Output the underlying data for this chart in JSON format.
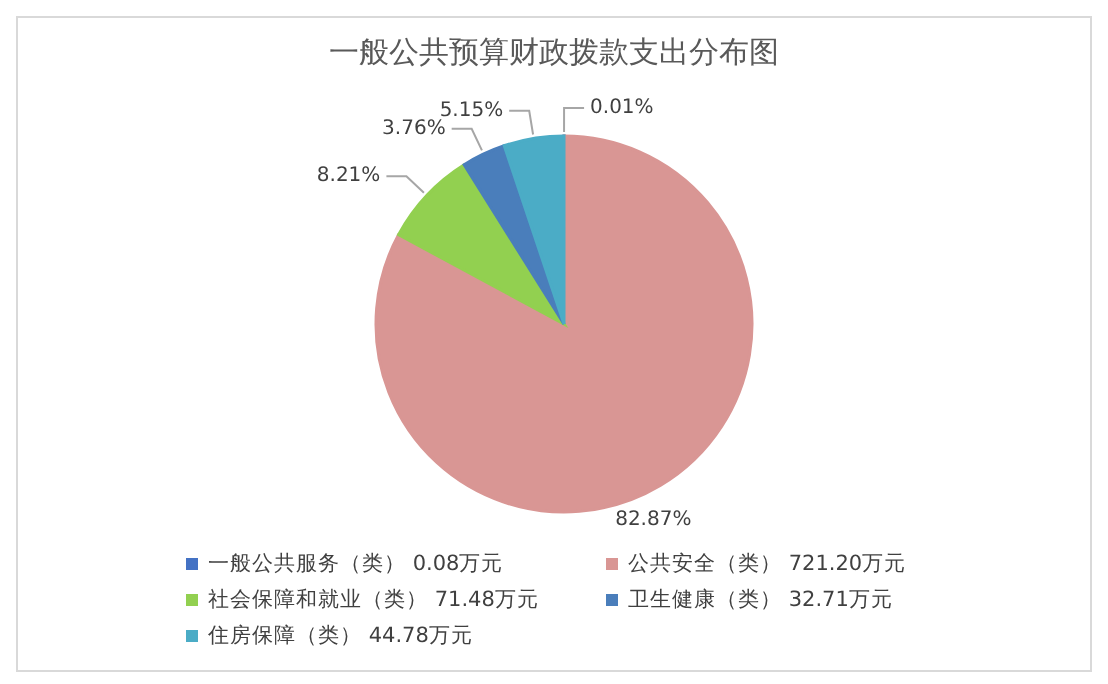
{
  "chart_data": {
    "type": "pie",
    "title": "一般公共预算财政拨款支出分布图",
    "categories": [
      "一般公共服务（类） 0.08万元",
      "公共安全（类） 721.20万元",
      "社会保障和就业（类） 71.48万元",
      "卫生健康（类） 32.71万元",
      "住房保障（类） 44.78万元"
    ],
    "values": [
      0.01,
      82.87,
      8.21,
      3.76,
      5.15
    ],
    "value_labels": [
      "0.01%",
      "82.87%",
      "8.21%",
      "3.76%",
      "5.15%"
    ],
    "colors": [
      "#4472c4",
      "#d99694",
      "#92d050",
      "#4a7ebb",
      "#4bacc6"
    ],
    "legend": "bottom"
  }
}
